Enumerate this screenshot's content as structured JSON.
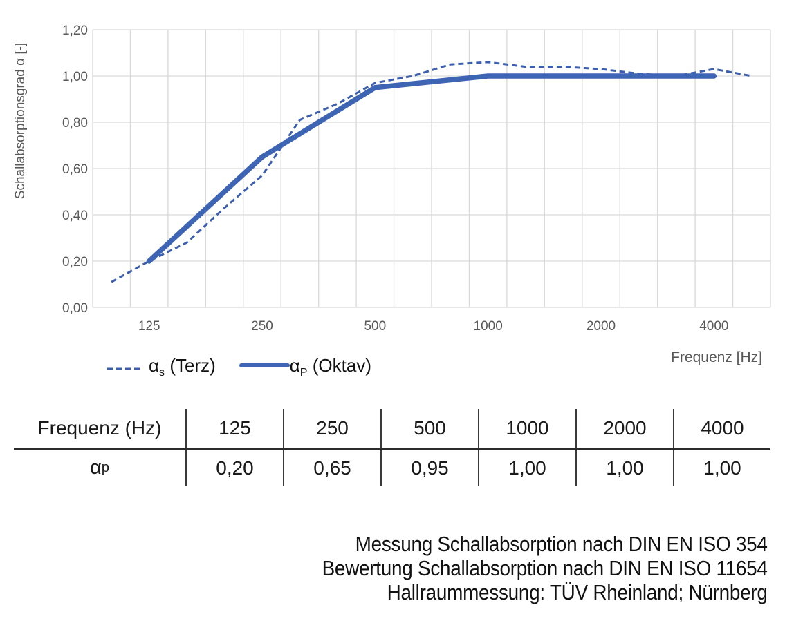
{
  "chart": {
    "y_axis_title": "Schallabsorptionsgrad α [-]",
    "x_axis_title": "Frequenz [Hz]",
    "y_tick_labels": [
      "0,00",
      "0,20",
      "0,40",
      "0,60",
      "0,80",
      "1,00",
      "1,20"
    ],
    "x_tick_labels": [
      "125",
      "250",
      "500",
      "1000",
      "2000",
      "4000"
    ],
    "colors": {
      "solid_line": "#3E64B4",
      "dashed_line": "#3B5FAE",
      "gridline": "#D9D9D9",
      "axis_text": "#595959"
    }
  },
  "chart_data": {
    "type": "line",
    "x_scale": "log-category-third-octave",
    "categories": [
      100,
      125,
      160,
      200,
      250,
      315,
      400,
      500,
      630,
      800,
      1000,
      1250,
      1600,
      2000,
      2500,
      3150,
      4000,
      5000
    ],
    "series": [
      {
        "name": "αs (Terz)",
        "style": "dashed",
        "values": [
          0.11,
          0.2,
          0.28,
          0.43,
          0.57,
          0.81,
          0.88,
          0.97,
          1.0,
          1.05,
          1.06,
          1.04,
          1.04,
          1.03,
          1.01,
          1.0,
          1.03,
          1.0
        ]
      },
      {
        "name": "αP (Oktav)",
        "style": "solid",
        "x": [
          125,
          250,
          500,
          1000,
          2000,
          4000
        ],
        "values": [
          0.2,
          0.65,
          0.95,
          1.0,
          1.0,
          1.0
        ]
      }
    ],
    "ylim": [
      0,
      1.2
    ],
    "y_ticks": [
      0,
      0.2,
      0.4,
      0.6,
      0.8,
      1.0,
      1.2
    ],
    "x_tick_categories": [
      125,
      250,
      500,
      1000,
      2000,
      4000
    ],
    "grid": true,
    "legend_position": "bottom-left",
    "title": ""
  },
  "legend": {
    "items": [
      {
        "base": "α",
        "sub": "s",
        "suffix": " (Terz)"
      },
      {
        "base": "α",
        "sub": "P",
        "suffix": " (Oktav)"
      }
    ]
  },
  "table": {
    "header_label": "Frequenz (Hz)",
    "row_label": {
      "base": "α",
      "sub": "p"
    },
    "columns": [
      "125",
      "250",
      "500",
      "1000",
      "2000",
      "4000"
    ],
    "values": [
      "0,20",
      "0,65",
      "0,95",
      "1,00",
      "1,00",
      "1,00"
    ]
  },
  "footer": {
    "lines": [
      "Messung Schallabsorption nach DIN EN ISO 354",
      "Bewertung Schallabsorption nach DIN EN ISO 11654",
      "Hallraummessung: TÜV Rheinland; Nürnberg"
    ]
  }
}
